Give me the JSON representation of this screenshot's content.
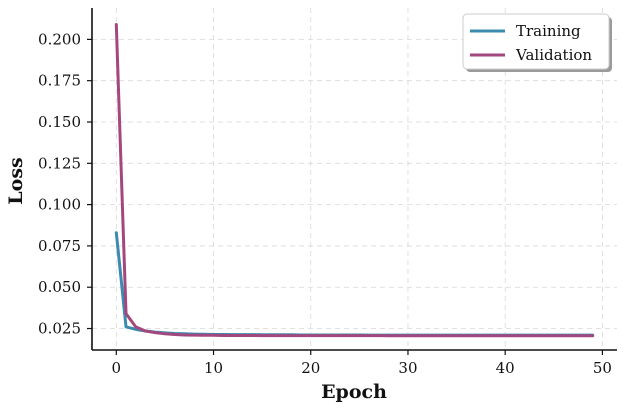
{
  "chart_data": {
    "type": "line",
    "title": "",
    "xlabel": "Epoch",
    "ylabel": "Loss",
    "xlim": [
      -2.5,
      51.5
    ],
    "ylim": [
      0.012,
      0.219
    ],
    "xticks": [
      0,
      10,
      20,
      30,
      40,
      50
    ],
    "xtick_labels": [
      "0",
      "10",
      "20",
      "30",
      "40",
      "50"
    ],
    "yticks": [
      0.025,
      0.05,
      0.075,
      0.1,
      0.125,
      0.15,
      0.175,
      0.2
    ],
    "ytick_labels": [
      "0.025",
      "0.050",
      "0.075",
      "0.100",
      "0.125",
      "0.150",
      "0.175",
      "0.200"
    ],
    "grid": true,
    "legend_position": "top-right",
    "x": [
      0,
      1,
      2,
      3,
      4,
      5,
      6,
      7,
      8,
      9,
      10,
      11,
      12,
      13,
      14,
      15,
      16,
      17,
      18,
      19,
      20,
      21,
      22,
      23,
      24,
      25,
      26,
      27,
      28,
      29,
      30,
      31,
      32,
      33,
      34,
      35,
      36,
      37,
      38,
      39,
      40,
      41,
      42,
      43,
      44,
      45,
      46,
      47,
      48,
      49
    ],
    "series": [
      {
        "name": "Training",
        "color": "#3b8bad",
        "values": [
          0.083,
          0.026,
          0.0245,
          0.0235,
          0.0228,
          0.0224,
          0.022,
          0.0218,
          0.0216,
          0.0215,
          0.0214,
          0.0214,
          0.0213,
          0.0213,
          0.0213,
          0.0212,
          0.0212,
          0.0212,
          0.0212,
          0.0211,
          0.0211,
          0.0211,
          0.0211,
          0.0211,
          0.0211,
          0.0211,
          0.021,
          0.021,
          0.021,
          0.021,
          0.021,
          0.021,
          0.021,
          0.021,
          0.021,
          0.021,
          0.021,
          0.021,
          0.021,
          0.021,
          0.021,
          0.021,
          0.021,
          0.021,
          0.021,
          0.021,
          0.021,
          0.021,
          0.021,
          0.021
        ]
      },
      {
        "name": "Validation",
        "color": "#a3487e",
        "values": [
          0.209,
          0.034,
          0.026,
          0.0235,
          0.0225,
          0.0218,
          0.0214,
          0.0211,
          0.021,
          0.0209,
          0.0209,
          0.0208,
          0.0208,
          0.0208,
          0.0208,
          0.0207,
          0.0207,
          0.0207,
          0.0207,
          0.0207,
          0.0207,
          0.0207,
          0.0207,
          0.0207,
          0.0207,
          0.0207,
          0.0207,
          0.0207,
          0.0206,
          0.0206,
          0.0206,
          0.0206,
          0.0206,
          0.0206,
          0.0206,
          0.0206,
          0.0206,
          0.0206,
          0.0206,
          0.0206,
          0.0206,
          0.0206,
          0.0206,
          0.0206,
          0.0206,
          0.0206,
          0.0206,
          0.0206,
          0.0206,
          0.0206
        ]
      }
    ]
  }
}
